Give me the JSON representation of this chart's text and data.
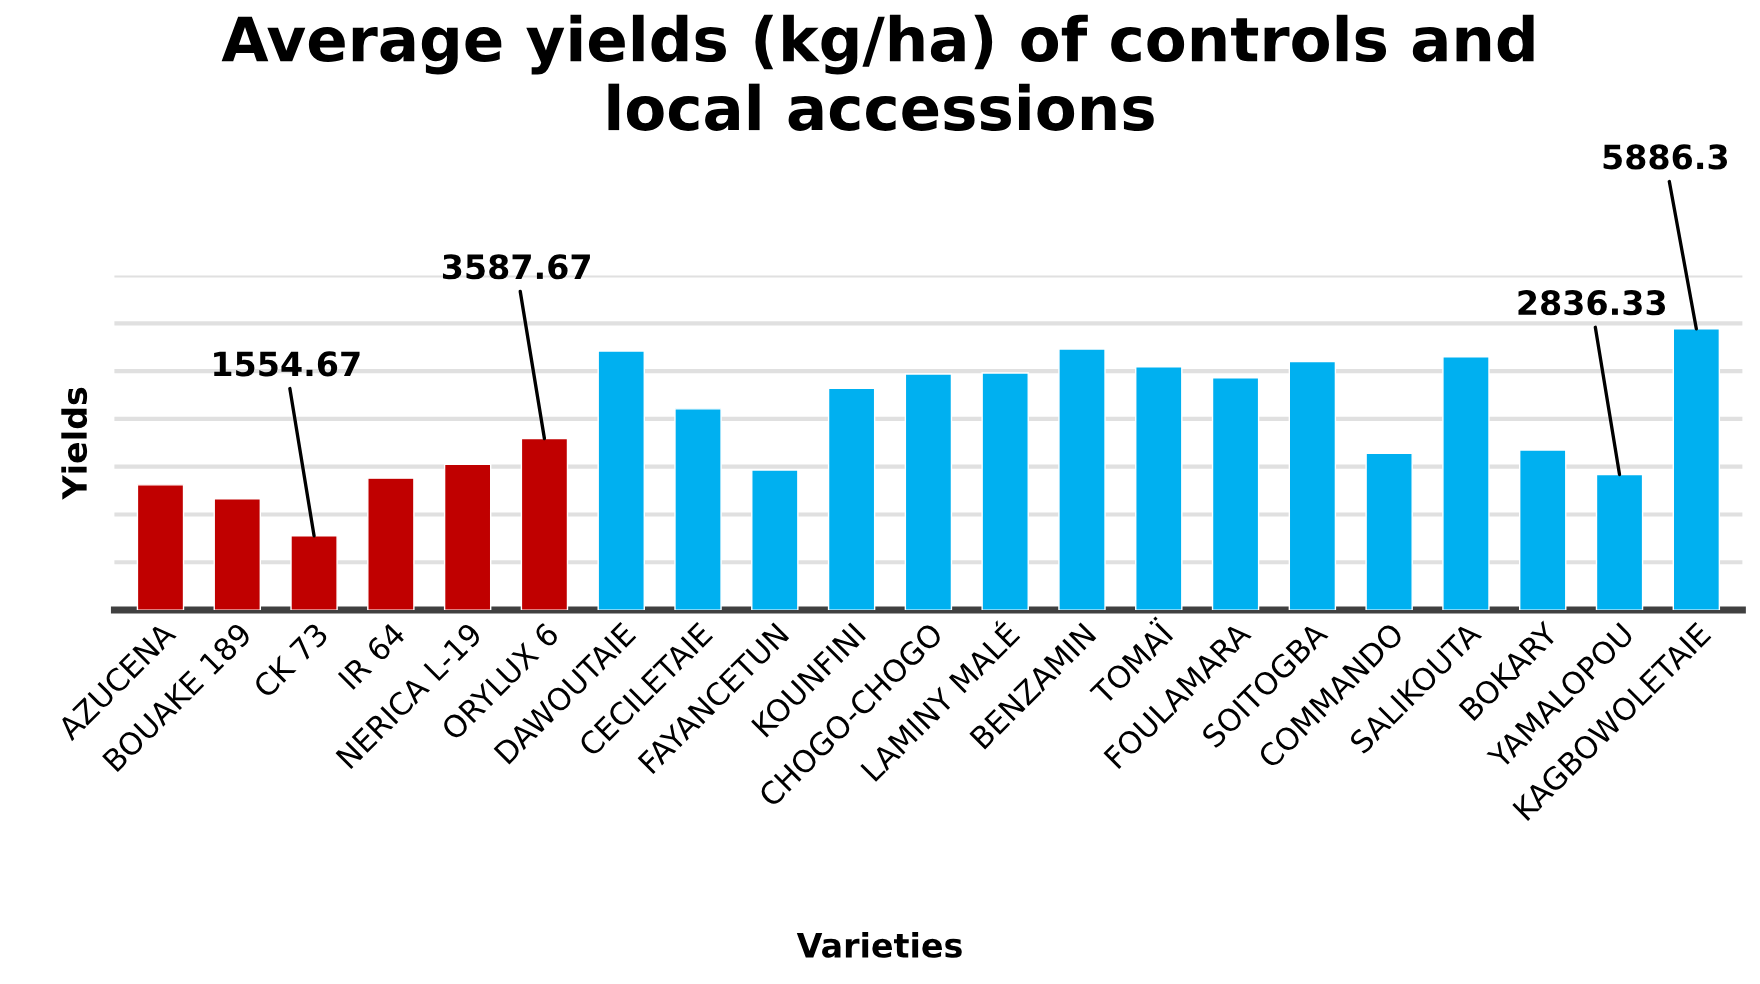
{
  "chart_data": {
    "type": "bar",
    "title": "Average yields (kg/ha) of controls and\nlocal accessions",
    "xlabel": "Varieties",
    "ylabel": "Yields",
    "categories": [
      "AZUCENA",
      "BOUAKE 189",
      "CK 73",
      "IR 64",
      "NERICA L-19",
      "ORYLUX 6",
      "DAWOUTAIE",
      "CECILETAIE",
      "FAYANCETUN",
      "KOUNFINI",
      "CHOGO-CHOGO",
      "LAMINY MALÉ",
      "BENZAMIN",
      "TOMAÏ",
      "FOULAMARA",
      "SOITOGBA",
      "COMMANDO",
      "SALIKOUTA",
      "BOKARY",
      "YAMALOPOU",
      "KAGBOWOLETAIE"
    ],
    "values": [
      2620,
      2330,
      1554.67,
      2760,
      3050,
      3587.67,
      5420,
      4210,
      2930,
      4640,
      4940,
      4960,
      5460,
      5090,
      4860,
      5200,
      3280,
      5300,
      3350,
      2836.33,
      5886.3
    ],
    "value_labels": [
      null,
      null,
      "1554.67",
      null,
      null,
      "3587.67",
      null,
      null,
      null,
      null,
      null,
      null,
      null,
      null,
      null,
      null,
      null,
      null,
      null,
      "2836.33",
      "5886.3"
    ],
    "colors": [
      "#c00000",
      "#c00000",
      "#c00000",
      "#c00000",
      "#c00000",
      "#c00000",
      "#00b0f0",
      "#00b0f0",
      "#00b0f0",
      "#00b0f0",
      "#00b0f0",
      "#00b0f0",
      "#00b0f0",
      "#00b0f0",
      "#00b0f0",
      "#00b0f0",
      "#00b0f0",
      "#00b0f0",
      "#00b0f0",
      "#00b0f0",
      "#00b0f0"
    ],
    "ylim": [
      0,
      7000
    ],
    "yticks": [
      {
        "value": 0,
        "label": null
      },
      {
        "value": 1000,
        "label": null
      },
      {
        "value": 2000,
        "label": null
      },
      {
        "value": 3000,
        "label": null
      },
      {
        "value": 4000,
        "label": null
      },
      {
        "value": 5000,
        "label": null
      },
      {
        "value": 6000,
        "label": null
      },
      {
        "value": 7000,
        "label": null
      }
    ],
    "grid": "y",
    "tick_labels": "x"
  }
}
